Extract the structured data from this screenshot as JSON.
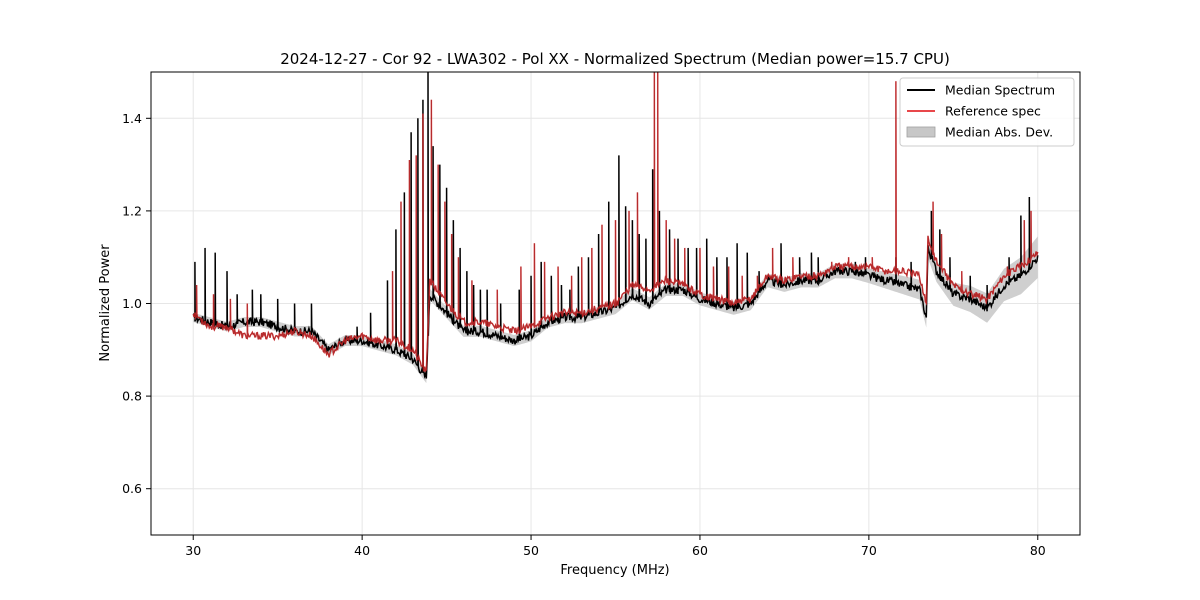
{
  "chart_data": {
    "type": "line",
    "title": "2024-12-27 - Cor 92 - LWA302 - Pol XX - Normalized Spectrum (Median power=15.7 CPU)",
    "xlabel": "Frequency (MHz)",
    "ylabel": "Normalized Power",
    "xlim": [
      27.5,
      82.5
    ],
    "ylim": [
      0.5,
      1.5
    ],
    "xticks": [
      30,
      40,
      50,
      60,
      70,
      80
    ],
    "yticks": [
      0.6,
      0.8,
      1.0,
      1.2,
      1.4
    ],
    "xtick_labels": [
      "30",
      "40",
      "50",
      "60",
      "70",
      "80"
    ],
    "ytick_labels": [
      "0.6",
      "0.8",
      "1.0",
      "1.2",
      "1.4"
    ],
    "grid": true,
    "legend_position": "upper right",
    "legend": [
      {
        "label": "Median Spectrum",
        "kind": "line",
        "color": "#000000"
      },
      {
        "label": "Reference spec",
        "kind": "line",
        "color": "#e8474a"
      },
      {
        "label": "Median Abs. Dev.",
        "kind": "band",
        "color": "#c7c7c7"
      }
    ],
    "series": [
      {
        "name": "Median Spectrum",
        "color": "#000000",
        "baseline": [
          [
            30.0,
            0.97
          ],
          [
            31.0,
            0.96
          ],
          [
            32.0,
            0.95
          ],
          [
            33.0,
            0.96
          ],
          [
            34.0,
            0.96
          ],
          [
            35.0,
            0.95
          ],
          [
            36.0,
            0.94
          ],
          [
            37.0,
            0.94
          ],
          [
            38.0,
            0.9
          ],
          [
            39.0,
            0.92
          ],
          [
            40.0,
            0.92
          ],
          [
            41.0,
            0.91
          ],
          [
            42.0,
            0.9
          ],
          [
            43.0,
            0.88
          ],
          [
            43.8,
            0.84
          ],
          [
            44.0,
            1.02
          ],
          [
            45.0,
            0.98
          ],
          [
            46.0,
            0.94
          ],
          [
            47.0,
            0.94
          ],
          [
            48.0,
            0.93
          ],
          [
            49.0,
            0.92
          ],
          [
            50.0,
            0.93
          ],
          [
            51.0,
            0.96
          ],
          [
            52.0,
            0.97
          ],
          [
            53.0,
            0.97
          ],
          [
            54.0,
            0.98
          ],
          [
            55.0,
            0.99
          ],
          [
            56.0,
            1.02
          ],
          [
            57.0,
            1.0
          ],
          [
            58.0,
            1.03
          ],
          [
            59.0,
            1.03
          ],
          [
            60.0,
            1.01
          ],
          [
            61.0,
            1.0
          ],
          [
            62.0,
            0.99
          ],
          [
            63.0,
            1.0
          ],
          [
            64.0,
            1.05
          ],
          [
            65.0,
            1.04
          ],
          [
            66.0,
            1.05
          ],
          [
            67.0,
            1.05
          ],
          [
            68.0,
            1.07
          ],
          [
            69.0,
            1.07
          ],
          [
            70.0,
            1.06
          ],
          [
            71.0,
            1.05
          ],
          [
            72.0,
            1.04
          ],
          [
            73.0,
            1.03
          ],
          [
            73.4,
            0.97
          ],
          [
            73.5,
            1.12
          ],
          [
            74.0,
            1.07
          ],
          [
            75.0,
            1.02
          ],
          [
            76.0,
            1.01
          ],
          [
            77.0,
            0.99
          ],
          [
            78.0,
            1.04
          ],
          [
            79.0,
            1.06
          ],
          [
            80.0,
            1.1
          ]
        ],
        "spikes": [
          [
            30.1,
            1.09
          ],
          [
            30.7,
            1.12
          ],
          [
            31.3,
            1.11
          ],
          [
            32.0,
            1.07
          ],
          [
            32.6,
            1.02
          ],
          [
            33.5,
            1.03
          ],
          [
            34.0,
            1.02
          ],
          [
            35.0,
            1.01
          ],
          [
            36.0,
            1.0
          ],
          [
            37.0,
            1.0
          ],
          [
            39.7,
            0.95
          ],
          [
            40.5,
            0.98
          ],
          [
            41.5,
            1.05
          ],
          [
            42.0,
            1.16
          ],
          [
            42.5,
            1.24
          ],
          [
            42.9,
            1.37
          ],
          [
            43.3,
            1.4
          ],
          [
            43.6,
            1.44
          ],
          [
            43.9,
            1.5
          ],
          [
            44.2,
            1.34
          ],
          [
            44.6,
            1.3
          ],
          [
            45.0,
            1.25
          ],
          [
            45.4,
            1.18
          ],
          [
            45.8,
            1.12
          ],
          [
            46.2,
            1.07
          ],
          [
            46.6,
            1.04
          ],
          [
            47.0,
            1.03
          ],
          [
            47.4,
            1.03
          ],
          [
            48.2,
            1.0
          ],
          [
            49.3,
            1.03
          ],
          [
            50.0,
            1.06
          ],
          [
            50.6,
            1.09
          ],
          [
            51.2,
            1.06
          ],
          [
            51.8,
            1.04
          ],
          [
            52.3,
            1.03
          ],
          [
            52.8,
            1.08
          ],
          [
            53.4,
            1.1
          ],
          [
            54.0,
            1.15
          ],
          [
            54.6,
            1.22
          ],
          [
            55.2,
            1.32
          ],
          [
            55.6,
            1.21
          ],
          [
            56.0,
            1.18
          ],
          [
            56.4,
            1.15
          ],
          [
            56.8,
            1.14
          ],
          [
            57.2,
            1.29
          ],
          [
            57.6,
            1.2
          ],
          [
            58.2,
            1.16
          ],
          [
            58.7,
            1.14
          ],
          [
            59.3,
            1.12
          ],
          [
            59.8,
            1.12
          ],
          [
            60.4,
            1.14
          ],
          [
            61.0,
            1.1
          ],
          [
            61.6,
            1.1
          ],
          [
            62.2,
            1.13
          ],
          [
            62.8,
            1.11
          ],
          [
            63.5,
            1.07
          ],
          [
            64.8,
            1.13
          ],
          [
            65.9,
            1.1
          ],
          [
            66.6,
            1.11
          ],
          [
            67.0,
            1.1
          ],
          [
            67.8,
            1.06
          ],
          [
            68.3,
            1.08
          ],
          [
            69.2,
            1.09
          ],
          [
            69.8,
            1.1
          ],
          [
            71.6,
            1.1
          ],
          [
            72.5,
            1.09
          ],
          [
            73.7,
            1.2
          ],
          [
            74.2,
            1.16
          ],
          [
            74.8,
            1.1
          ],
          [
            76.0,
            1.06
          ],
          [
            77.0,
            1.04
          ],
          [
            78.3,
            1.1
          ],
          [
            79.0,
            1.19
          ],
          [
            79.5,
            1.23
          ]
        ]
      },
      {
        "name": "Reference spec",
        "color": "#e8474a",
        "baseline": [
          [
            30.0,
            0.98
          ],
          [
            31.0,
            0.95
          ],
          [
            32.0,
            0.95
          ],
          [
            33.0,
            0.93
          ],
          [
            34.0,
            0.93
          ],
          [
            35.0,
            0.93
          ],
          [
            36.0,
            0.94
          ],
          [
            37.0,
            0.93
          ],
          [
            38.0,
            0.89
          ],
          [
            39.0,
            0.92
          ],
          [
            40.0,
            0.93
          ],
          [
            41.0,
            0.92
          ],
          [
            42.0,
            0.92
          ],
          [
            43.0,
            0.9
          ],
          [
            43.8,
            0.85
          ],
          [
            44.0,
            1.05
          ],
          [
            45.0,
            1.0
          ],
          [
            46.0,
            0.96
          ],
          [
            47.0,
            0.96
          ],
          [
            48.0,
            0.95
          ],
          [
            49.0,
            0.94
          ],
          [
            50.0,
            0.95
          ],
          [
            51.0,
            0.97
          ],
          [
            52.0,
            0.98
          ],
          [
            53.0,
            0.98
          ],
          [
            54.0,
            0.99
          ],
          [
            55.0,
            1.0
          ],
          [
            56.0,
            1.04
          ],
          [
            57.0,
            1.03
          ],
          [
            58.0,
            1.05
          ],
          [
            59.0,
            1.04
          ],
          [
            60.0,
            1.02
          ],
          [
            61.0,
            1.01
          ],
          [
            62.0,
            1.0
          ],
          [
            63.0,
            1.01
          ],
          [
            64.0,
            1.06
          ],
          [
            65.0,
            1.05
          ],
          [
            66.0,
            1.06
          ],
          [
            67.0,
            1.06
          ],
          [
            68.0,
            1.08
          ],
          [
            69.0,
            1.08
          ],
          [
            70.0,
            1.08
          ],
          [
            71.0,
            1.07
          ],
          [
            72.0,
            1.07
          ],
          [
            73.0,
            1.06
          ],
          [
            73.4,
            1.0
          ],
          [
            73.5,
            1.14
          ],
          [
            74.0,
            1.09
          ],
          [
            75.0,
            1.04
          ],
          [
            76.0,
            1.02
          ],
          [
            77.0,
            1.01
          ],
          [
            78.0,
            1.06
          ],
          [
            79.0,
            1.08
          ],
          [
            80.0,
            1.11
          ]
        ],
        "spikes": [
          [
            30.2,
            1.04
          ],
          [
            31.2,
            1.02
          ],
          [
            32.2,
            1.01
          ],
          [
            33.2,
            1.0
          ],
          [
            41.8,
            1.07
          ],
          [
            42.3,
            1.22
          ],
          [
            42.8,
            1.31
          ],
          [
            43.2,
            1.32
          ],
          [
            43.6,
            1.41
          ],
          [
            44.1,
            1.44
          ],
          [
            44.5,
            1.3
          ],
          [
            44.9,
            1.22
          ],
          [
            45.3,
            1.15
          ],
          [
            45.7,
            1.1
          ],
          [
            46.5,
            1.05
          ],
          [
            48.0,
            1.03
          ],
          [
            49.4,
            1.08
          ],
          [
            50.2,
            1.13
          ],
          [
            50.8,
            1.09
          ],
          [
            51.6,
            1.08
          ],
          [
            52.4,
            1.06
          ],
          [
            53.0,
            1.1
          ],
          [
            53.6,
            1.12
          ],
          [
            54.2,
            1.17
          ],
          [
            55.0,
            1.18
          ],
          [
            55.8,
            1.2
          ],
          [
            56.3,
            1.24
          ],
          [
            57.3,
            1.5
          ],
          [
            57.5,
            1.5
          ],
          [
            58.0,
            1.18
          ],
          [
            58.5,
            1.14
          ],
          [
            59.1,
            1.12
          ],
          [
            60.0,
            1.12
          ],
          [
            60.8,
            1.08
          ],
          [
            61.7,
            1.08
          ],
          [
            62.5,
            1.06
          ],
          [
            63.4,
            1.06
          ],
          [
            64.3,
            1.12
          ],
          [
            65.5,
            1.1
          ],
          [
            67.8,
            1.09
          ],
          [
            68.8,
            1.1
          ],
          [
            70.2,
            1.1
          ],
          [
            71.6,
            1.48
          ],
          [
            73.8,
            1.22
          ],
          [
            74.3,
            1.15
          ],
          [
            75.5,
            1.07
          ],
          [
            78.2,
            1.08
          ],
          [
            79.2,
            1.18
          ],
          [
            79.6,
            1.2
          ]
        ]
      }
    ],
    "band": {
      "name": "Median Abs. Dev.",
      "color": "#c7c7c7",
      "half_width": [
        [
          30.0,
          0.01
        ],
        [
          40.0,
          0.012
        ],
        [
          50.0,
          0.012
        ],
        [
          60.0,
          0.014
        ],
        [
          70.0,
          0.016
        ],
        [
          75.0,
          0.025
        ],
        [
          78.0,
          0.035
        ],
        [
          80.0,
          0.045
        ]
      ]
    }
  }
}
